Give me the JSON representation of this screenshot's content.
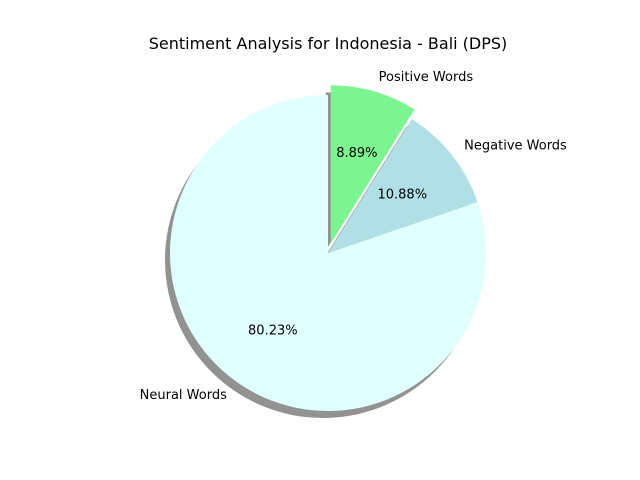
{
  "chart_data": {
    "type": "pie",
    "title": "Sentiment Analysis for Indonesia - Bali (DPS)",
    "start_angle_deg": 90,
    "direction": "clockwise",
    "shadow": true,
    "slices": [
      {
        "label": "Positive Words",
        "value": 8.89,
        "pct_label": "8.89%",
        "color": "#7cf590",
        "exploded": true
      },
      {
        "label": "Negative Words",
        "value": 10.88,
        "pct_label": "10.88%",
        "color": "#b0e0e6",
        "exploded": false
      },
      {
        "label": "Neural Words",
        "value": 80.23,
        "pct_label": "80.23%",
        "color": "#e0ffff",
        "exploded": false
      }
    ]
  }
}
